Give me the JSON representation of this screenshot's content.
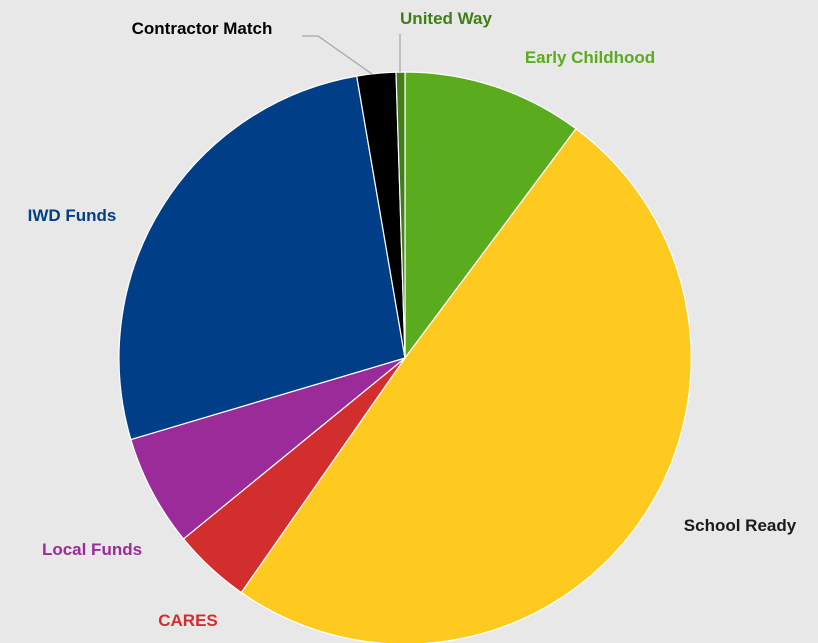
{
  "chart_data": {
    "type": "pie",
    "title": "",
    "start_angle_deg": 0,
    "direction": "clockwise",
    "slices": [
      {
        "label": "Early Childhood",
        "value": 10.2,
        "color": "#5aac1e",
        "label_color": "#5aac1e"
      },
      {
        "label": "School Ready",
        "value": 49.5,
        "color": "#ffca1f",
        "label_color": "#1a1a1a"
      },
      {
        "label": "CARES",
        "value": 4.4,
        "color": "#d22e2e",
        "label_color": "#d22e2e"
      },
      {
        "label": "Local Funds",
        "value": 6.3,
        "color": "#9a2b99",
        "label_color": "#9a2b99"
      },
      {
        "label": "IWD Funds",
        "value": 26.9,
        "color": "#003f88",
        "label_color": "#003f88"
      },
      {
        "label": "Contractor Match",
        "value": 2.2,
        "color": "#000000",
        "label_color": "#000000"
      },
      {
        "label": "United Way",
        "value": 0.5,
        "color": "#3f7f16",
        "label_color": "#3f7f16"
      }
    ]
  }
}
